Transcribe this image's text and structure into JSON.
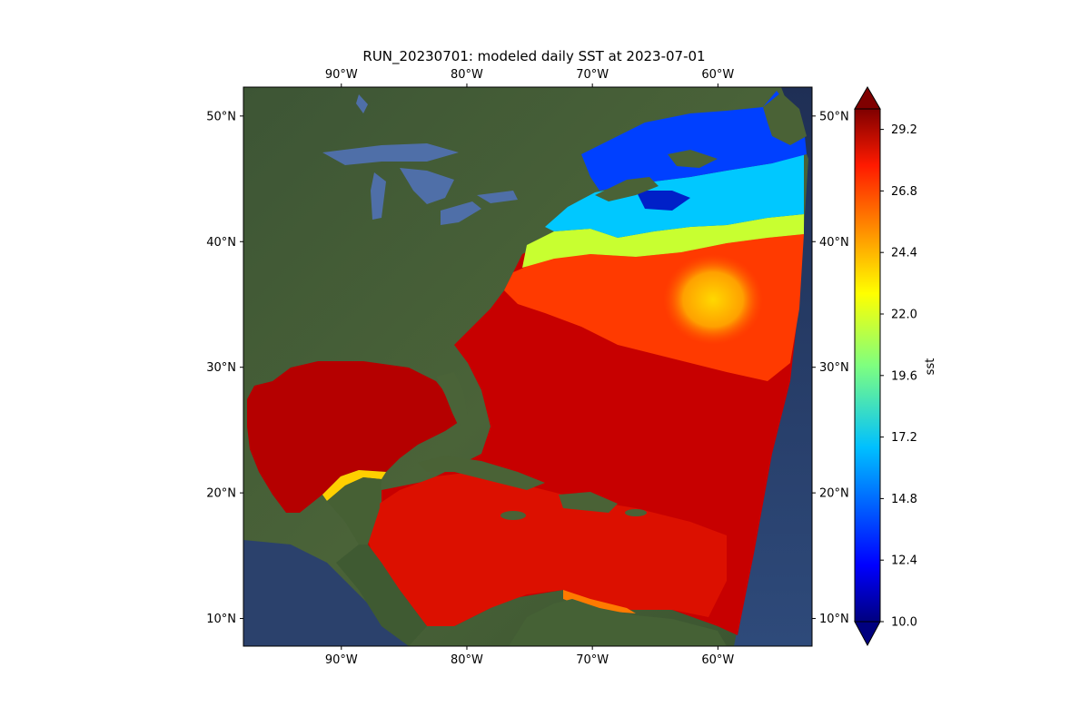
{
  "title": "RUN_20230701: modeled daily SST at 2023-07-01",
  "map": {
    "lon_ticks": [
      "90°W",
      "80°W",
      "70°W",
      "60°W"
    ],
    "lat_ticks": [
      "50°N",
      "40°N",
      "30°N",
      "20°N",
      "10°N"
    ],
    "lon_values": [
      -90,
      -80,
      -70,
      -60
    ],
    "lat_values": [
      50,
      40,
      30,
      20,
      10
    ],
    "lon_range": [
      -97.8,
      -52.5
    ],
    "lat_range": [
      7.8,
      52.3
    ]
  },
  "colorbar": {
    "label": "sst",
    "ticks": [
      "29.2",
      "26.8",
      "24.4",
      "22.0",
      "19.6",
      "17.2",
      "14.8",
      "12.4",
      "10.0"
    ],
    "tick_values": [
      29.2,
      26.8,
      24.4,
      22.0,
      19.6,
      17.2,
      14.8,
      12.4,
      10.0
    ],
    "range": [
      10.0,
      30.0
    ],
    "colormap": "jet",
    "extend": "both"
  },
  "colors": {
    "land": "#3f5a34",
    "ocean_dark": "#2a3f66",
    "lakes": "#4f6fa8",
    "sst_warm": "#b00000",
    "sst_mid": "#ff4a00",
    "sst_cool": "#00a8ff",
    "sst_cold": "#0020d0"
  }
}
